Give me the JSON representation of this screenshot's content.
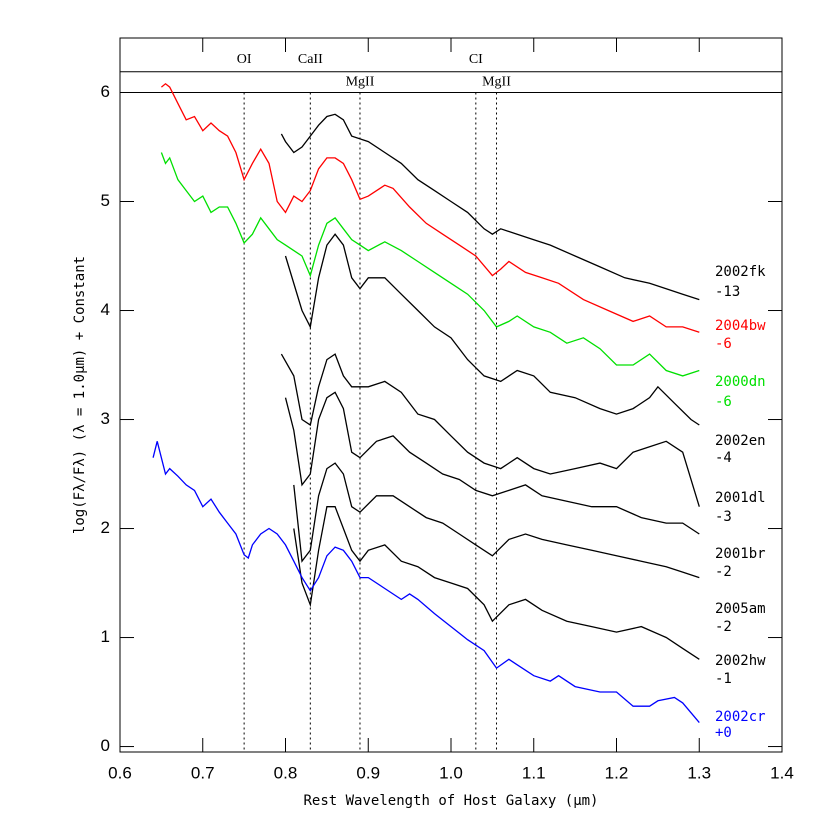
{
  "chart_data": {
    "type": "line",
    "xlabel": "Rest Wavelength of Host Galaxy (μm)",
    "ylabel": "log(Fλ/Fλ) (λ = 1.0μm) +  Constant",
    "xlim": [
      0.6,
      1.4
    ],
    "ylim": [
      -0.05,
      6.5
    ],
    "xticks": [
      {
        "value": 0.6,
        "label": "0.6"
      },
      {
        "value": 0.7,
        "label": "0.7"
      },
      {
        "value": 0.8,
        "label": "0.8"
      },
      {
        "value": 0.9,
        "label": "0.9"
      },
      {
        "value": 1.0,
        "label": "1.0"
      },
      {
        "value": 1.1,
        "label": "1.1"
      },
      {
        "value": 1.2,
        "label": "1.2"
      },
      {
        "value": 1.3,
        "label": "1.3"
      },
      {
        "value": 1.4,
        "label": "1.4"
      }
    ],
    "yticks": [
      0,
      1,
      2,
      3,
      4,
      5,
      6
    ],
    "band": [
      6.0,
      6.19
    ],
    "lines": [
      {
        "label": "OI",
        "x": 0.75
      },
      {
        "label": "CaII",
        "x": 0.83
      },
      {
        "label": "MgII",
        "x": 0.89
      },
      {
        "label": "CI",
        "x": 1.03
      },
      {
        "label": "MgII",
        "x": 1.055
      }
    ],
    "series": [
      {
        "name": "2002fk",
        "offset": "-13",
        "color": "#000000",
        "x": [
          0.795,
          0.8,
          0.81,
          0.82,
          0.83,
          0.84,
          0.85,
          0.86,
          0.87,
          0.88,
          0.9,
          0.92,
          0.94,
          0.96,
          0.98,
          1.0,
          1.02,
          1.04,
          1.05,
          1.06,
          1.08,
          1.1,
          1.12,
          1.15,
          1.18,
          1.21,
          1.24,
          1.26,
          1.28,
          1.3
        ],
        "values": [
          5.62,
          5.55,
          5.45,
          5.5,
          5.6,
          5.7,
          5.78,
          5.8,
          5.75,
          5.6,
          5.55,
          5.45,
          5.35,
          5.2,
          5.1,
          5.0,
          4.9,
          4.75,
          4.7,
          4.75,
          4.7,
          4.65,
          4.6,
          4.5,
          4.4,
          4.3,
          4.25,
          4.2,
          4.15,
          4.1
        ]
      },
      {
        "name": "2004bw",
        "offset": "-6",
        "color": "#ff0000",
        "x": [
          0.65,
          0.655,
          0.66,
          0.67,
          0.68,
          0.69,
          0.7,
          0.71,
          0.72,
          0.73,
          0.74,
          0.75,
          0.76,
          0.77,
          0.78,
          0.79,
          0.8,
          0.81,
          0.82,
          0.83,
          0.84,
          0.85,
          0.86,
          0.87,
          0.88,
          0.89,
          0.9,
          0.92,
          0.93,
          0.95,
          0.97,
          0.99,
          1.01,
          1.03,
          1.05,
          1.06,
          1.07,
          1.09,
          1.11,
          1.13,
          1.16,
          1.19,
          1.22,
          1.24,
          1.26,
          1.28,
          1.3
        ],
        "values": [
          6.05,
          6.08,
          6.05,
          5.9,
          5.75,
          5.78,
          5.65,
          5.72,
          5.65,
          5.6,
          5.45,
          5.2,
          5.35,
          5.48,
          5.35,
          5.0,
          4.9,
          5.05,
          5.0,
          5.1,
          5.3,
          5.4,
          5.4,
          5.35,
          5.2,
          5.02,
          5.05,
          5.15,
          5.12,
          4.95,
          4.8,
          4.7,
          4.6,
          4.5,
          4.32,
          4.38,
          4.45,
          4.35,
          4.3,
          4.25,
          4.1,
          4.0,
          3.9,
          3.95,
          3.85,
          3.85,
          3.8
        ]
      },
      {
        "name": "2000dn",
        "offset": "-6",
        "color": "#00e000",
        "x": [
          0.65,
          0.655,
          0.66,
          0.67,
          0.68,
          0.69,
          0.7,
          0.71,
          0.72,
          0.73,
          0.74,
          0.75,
          0.76,
          0.77,
          0.78,
          0.79,
          0.8,
          0.81,
          0.82,
          0.83,
          0.84,
          0.85,
          0.86,
          0.87,
          0.88,
          0.89,
          0.9,
          0.92,
          0.94,
          0.96,
          0.98,
          1.0,
          1.02,
          1.04,
          1.055,
          1.07,
          1.08,
          1.1,
          1.12,
          1.14,
          1.16,
          1.18,
          1.2,
          1.22,
          1.24,
          1.26,
          1.28,
          1.3
        ],
        "values": [
          5.45,
          5.35,
          5.4,
          5.2,
          5.1,
          5.0,
          5.05,
          4.9,
          4.95,
          4.95,
          4.8,
          4.62,
          4.7,
          4.85,
          4.75,
          4.65,
          4.6,
          4.55,
          4.5,
          4.32,
          4.6,
          4.8,
          4.85,
          4.75,
          4.65,
          4.6,
          4.55,
          4.63,
          4.55,
          4.45,
          4.35,
          4.25,
          4.15,
          4.0,
          3.85,
          3.9,
          3.95,
          3.85,
          3.8,
          3.7,
          3.75,
          3.65,
          3.5,
          3.5,
          3.6,
          3.45,
          3.4,
          3.45
        ]
      },
      {
        "name": "2002en",
        "offset": "-4",
        "color": "#000000",
        "x": [
          0.8,
          0.82,
          0.83,
          0.84,
          0.85,
          0.86,
          0.87,
          0.88,
          0.89,
          0.9,
          0.92,
          0.94,
          0.96,
          0.98,
          1.0,
          1.02,
          1.04,
          1.06,
          1.08,
          1.1,
          1.12,
          1.15,
          1.18,
          1.2,
          1.22,
          1.24,
          1.25,
          1.27,
          1.29,
          1.3
        ],
        "values": [
          4.5,
          4.0,
          3.85,
          4.3,
          4.6,
          4.7,
          4.6,
          4.3,
          4.2,
          4.3,
          4.3,
          4.15,
          4.0,
          3.85,
          3.75,
          3.55,
          3.4,
          3.35,
          3.45,
          3.4,
          3.25,
          3.2,
          3.1,
          3.05,
          3.1,
          3.2,
          3.3,
          3.15,
          3.0,
          2.95
        ]
      },
      {
        "name": "2001dl",
        "offset": "-3",
        "color": "#000000",
        "x": [
          0.795,
          0.81,
          0.82,
          0.83,
          0.84,
          0.85,
          0.86,
          0.87,
          0.88,
          0.9,
          0.92,
          0.94,
          0.96,
          0.98,
          1.0,
          1.02,
          1.04,
          1.06,
          1.08,
          1.1,
          1.12,
          1.15,
          1.18,
          1.2,
          1.22,
          1.24,
          1.26,
          1.28,
          1.3
        ],
        "values": [
          3.6,
          3.4,
          3.0,
          2.95,
          3.3,
          3.55,
          3.6,
          3.4,
          3.3,
          3.3,
          3.35,
          3.25,
          3.05,
          3.0,
          2.85,
          2.7,
          2.6,
          2.55,
          2.65,
          2.55,
          2.5,
          2.55,
          2.6,
          2.55,
          2.7,
          2.75,
          2.8,
          2.7,
          2.2
        ]
      },
      {
        "name": "2001br",
        "offset": "-2",
        "color": "#000000",
        "x": [
          0.8,
          0.81,
          0.82,
          0.83,
          0.84,
          0.85,
          0.86,
          0.87,
          0.88,
          0.89,
          0.91,
          0.93,
          0.95,
          0.97,
          0.99,
          1.01,
          1.03,
          1.05,
          1.07,
          1.09,
          1.11,
          1.14,
          1.17,
          1.2,
          1.23,
          1.26,
          1.28,
          1.3
        ],
        "values": [
          3.2,
          2.9,
          2.4,
          2.5,
          3.0,
          3.2,
          3.25,
          3.1,
          2.7,
          2.65,
          2.8,
          2.85,
          2.7,
          2.6,
          2.5,
          2.45,
          2.35,
          2.3,
          2.35,
          2.4,
          2.3,
          2.25,
          2.2,
          2.2,
          2.1,
          2.05,
          2.05,
          1.95
        ]
      },
      {
        "name": "2005am",
        "offset": "-2",
        "color": "#000000",
        "x": [
          0.81,
          0.82,
          0.83,
          0.84,
          0.85,
          0.86,
          0.87,
          0.88,
          0.89,
          0.91,
          0.93,
          0.95,
          0.97,
          0.99,
          1.01,
          1.03,
          1.05,
          1.07,
          1.09,
          1.11,
          1.14,
          1.17,
          1.2,
          1.23,
          1.26,
          1.28,
          1.3
        ],
        "values": [
          2.4,
          1.7,
          1.8,
          2.3,
          2.55,
          2.6,
          2.5,
          2.2,
          2.15,
          2.3,
          2.3,
          2.2,
          2.1,
          2.05,
          1.95,
          1.85,
          1.75,
          1.9,
          1.95,
          1.9,
          1.85,
          1.8,
          1.75,
          1.7,
          1.65,
          1.6,
          1.55
        ]
      },
      {
        "name": "2002hw",
        "offset": "-1",
        "color": "#000000",
        "x": [
          0.81,
          0.82,
          0.83,
          0.84,
          0.85,
          0.86,
          0.87,
          0.88,
          0.89,
          0.9,
          0.92,
          0.94,
          0.96,
          0.98,
          1.0,
          1.02,
          1.04,
          1.05,
          1.07,
          1.09,
          1.11,
          1.14,
          1.17,
          1.2,
          1.23,
          1.26,
          1.28,
          1.3
        ],
        "values": [
          2.0,
          1.5,
          1.3,
          1.8,
          2.2,
          2.2,
          2.0,
          1.8,
          1.7,
          1.8,
          1.85,
          1.7,
          1.65,
          1.55,
          1.5,
          1.45,
          1.3,
          1.15,
          1.3,
          1.35,
          1.25,
          1.15,
          1.1,
          1.05,
          1.1,
          1.0,
          0.9,
          0.8
        ]
      },
      {
        "name": "2002cr",
        "offset": "+0",
        "color": "#0000ff",
        "x": [
          0.64,
          0.645,
          0.655,
          0.66,
          0.67,
          0.68,
          0.69,
          0.7,
          0.71,
          0.72,
          0.73,
          0.74,
          0.75,
          0.755,
          0.76,
          0.77,
          0.78,
          0.79,
          0.8,
          0.81,
          0.82,
          0.83,
          0.84,
          0.85,
          0.86,
          0.87,
          0.88,
          0.89,
          0.9,
          0.92,
          0.94,
          0.95,
          0.96,
          0.98,
          1.0,
          1.02,
          1.04,
          1.055,
          1.07,
          1.08,
          1.1,
          1.12,
          1.13,
          1.15,
          1.18,
          1.2,
          1.22,
          1.24,
          1.25,
          1.27,
          1.28,
          1.3
        ],
        "values": [
          2.65,
          2.8,
          2.5,
          2.55,
          2.48,
          2.4,
          2.35,
          2.2,
          2.27,
          2.15,
          2.05,
          1.95,
          1.76,
          1.73,
          1.85,
          1.95,
          2.0,
          1.95,
          1.85,
          1.7,
          1.55,
          1.43,
          1.55,
          1.75,
          1.83,
          1.8,
          1.7,
          1.55,
          1.55,
          1.45,
          1.35,
          1.4,
          1.35,
          1.22,
          1.1,
          0.98,
          0.88,
          0.72,
          0.8,
          0.75,
          0.65,
          0.6,
          0.65,
          0.55,
          0.5,
          0.5,
          0.37,
          0.37,
          0.42,
          0.45,
          0.4,
          0.22
        ]
      }
    ]
  }
}
